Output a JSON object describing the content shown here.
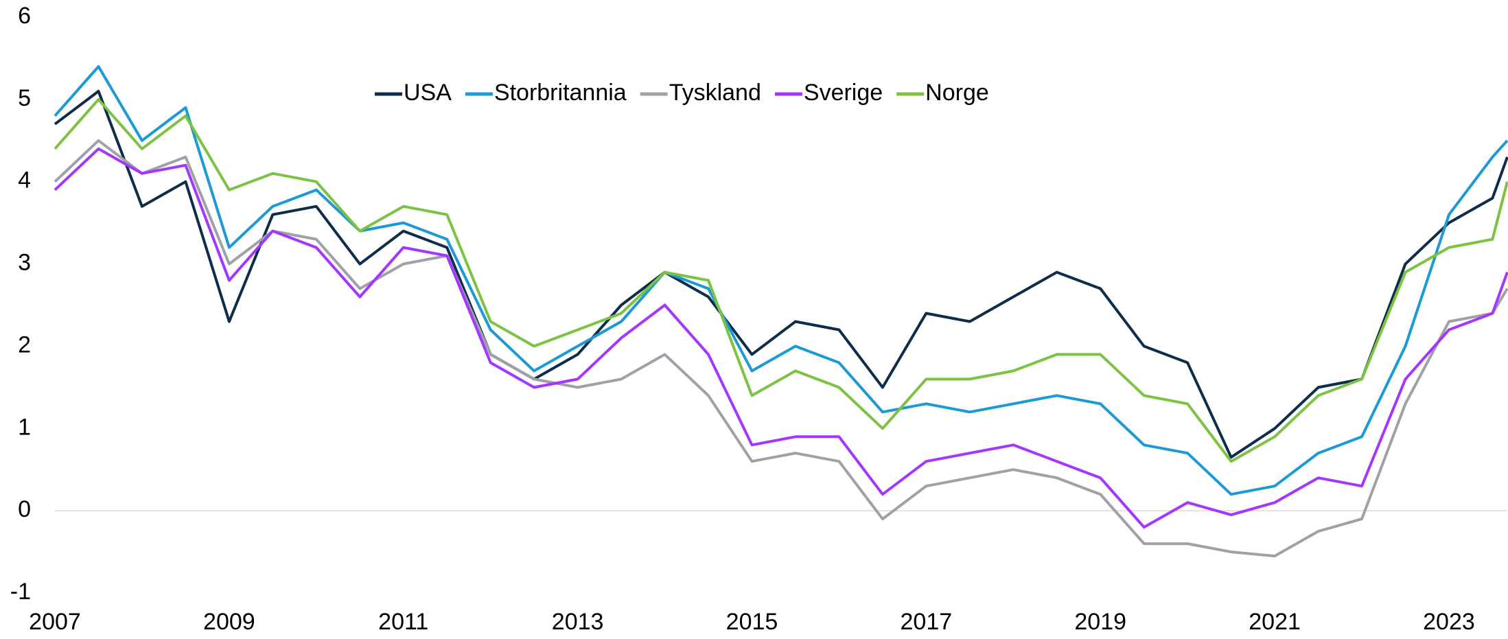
{
  "chart_data": {
    "type": "line",
    "x": [
      2007.0,
      2007.5,
      2008.0,
      2008.5,
      2009.0,
      2009.5,
      2010.0,
      2010.5,
      2011.0,
      2011.5,
      2012.0,
      2012.5,
      2013.0,
      2013.5,
      2014.0,
      2014.5,
      2015.0,
      2015.5,
      2016.0,
      2016.5,
      2017.0,
      2017.5,
      2018.0,
      2018.5,
      2019.0,
      2019.5,
      2020.0,
      2020.5,
      2021.0,
      2021.5,
      2022.0,
      2022.5,
      2023.0,
      2023.5,
      2023.67
    ],
    "series": [
      {
        "name": "USA",
        "color": "#0d2d4b",
        "values": [
          4.7,
          5.1,
          3.7,
          4.0,
          2.3,
          3.6,
          3.7,
          3.0,
          3.4,
          3.2,
          1.9,
          1.6,
          1.9,
          2.5,
          2.9,
          2.6,
          1.9,
          2.3,
          2.2,
          1.5,
          2.4,
          2.3,
          2.6,
          2.9,
          2.7,
          2.0,
          1.8,
          0.65,
          1.0,
          1.5,
          1.6,
          3.0,
          3.5,
          3.8,
          4.3
        ]
      },
      {
        "name": "Storbritannia",
        "color": "#1b9ad6",
        "values": [
          4.8,
          5.4,
          4.5,
          4.9,
          3.2,
          3.7,
          3.9,
          3.4,
          3.5,
          3.3,
          2.2,
          1.7,
          2.0,
          2.3,
          2.9,
          2.7,
          1.7,
          2.0,
          1.8,
          1.2,
          1.3,
          1.2,
          1.3,
          1.4,
          1.3,
          0.8,
          0.7,
          0.2,
          0.3,
          0.7,
          0.9,
          2.0,
          3.6,
          4.3,
          4.5
        ]
      },
      {
        "name": "Tyskland",
        "color": "#a0a0a8",
        "values": [
          4.0,
          4.5,
          4.1,
          4.3,
          3.0,
          3.4,
          3.3,
          2.7,
          3.0,
          3.1,
          1.9,
          1.6,
          1.5,
          1.6,
          1.9,
          1.4,
          0.6,
          0.7,
          0.6,
          -0.1,
          0.3,
          0.4,
          0.5,
          0.4,
          0.2,
          -0.4,
          -0.4,
          -0.5,
          -0.55,
          -0.25,
          -0.1,
          1.3,
          2.3,
          2.4,
          2.7
        ]
      },
      {
        "name": "Sverige",
        "color": "#a336ff",
        "values": [
          3.9,
          4.4,
          4.1,
          4.2,
          2.8,
          3.4,
          3.2,
          2.6,
          3.2,
          3.1,
          1.8,
          1.5,
          1.6,
          2.1,
          2.5,
          1.9,
          0.8,
          0.9,
          0.9,
          0.2,
          0.6,
          0.7,
          0.8,
          0.6,
          0.4,
          -0.2,
          0.1,
          -0.05,
          0.1,
          0.4,
          0.3,
          1.6,
          2.2,
          2.4,
          2.9
        ]
      },
      {
        "name": "Norge",
        "color": "#7dc242",
        "values": [
          4.4,
          5.0,
          4.4,
          4.8,
          3.9,
          4.1,
          4.0,
          3.4,
          3.7,
          3.6,
          2.3,
          2.0,
          2.2,
          2.4,
          2.9,
          2.8,
          1.4,
          1.7,
          1.5,
          1.0,
          1.6,
          1.6,
          1.7,
          1.9,
          1.9,
          1.4,
          1.3,
          0.6,
          0.9,
          1.4,
          1.6,
          2.9,
          3.2,
          3.3,
          4.0
        ]
      }
    ],
    "xlim": [
      2007,
      2023.67
    ],
    "xticks": [
      2007,
      2009,
      2011,
      2013,
      2015,
      2017,
      2019,
      2021,
      2023
    ],
    "ylim": [
      -1,
      6
    ],
    "yticks": [
      -1,
      0,
      1,
      2,
      3,
      4,
      5,
      6
    ],
    "legend": "top"
  }
}
